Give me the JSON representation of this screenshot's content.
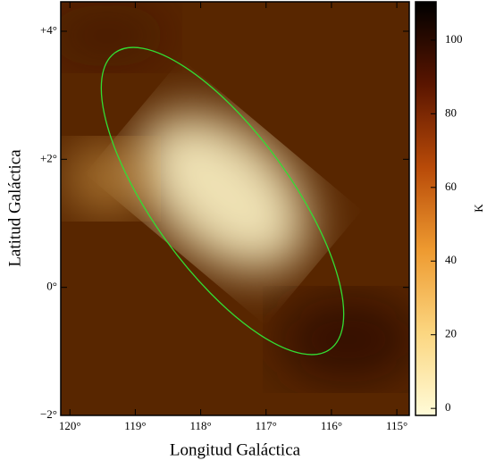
{
  "chart_data": {
    "type": "image",
    "xlabel": "Longitud Galáctica",
    "ylabel": "Latitud Galáctica",
    "xlim": [
      120.14,
      114.81
    ],
    "xticks": [
      {
        "value": 120,
        "label": "120°"
      },
      {
        "value": 119,
        "label": "119°"
      },
      {
        "value": 118,
        "label": "118°"
      },
      {
        "value": 117,
        "label": "117°"
      },
      {
        "value": 116,
        "label": "116°"
      },
      {
        "value": 115,
        "label": "115°"
      }
    ],
    "ylim": [
      -2,
      4.46
    ],
    "yticks": [
      {
        "value": -2,
        "label": "−2°"
      },
      {
        "value": 0,
        "label": "0°"
      },
      {
        "value": 2,
        "label": "+2°"
      },
      {
        "value": 4,
        "label": "+4°"
      }
    ],
    "colorbar_label": "K",
    "clim": [
      -1.9,
      110.4
    ],
    "cticks": [
      0,
      20,
      40,
      60,
      80,
      100
    ],
    "ellipse_color": "#33dd33"
  }
}
